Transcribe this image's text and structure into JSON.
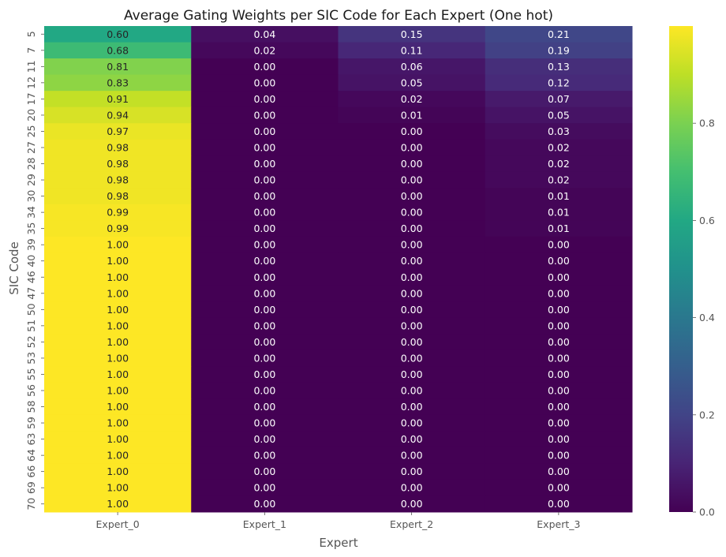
{
  "chart_data": {
    "type": "heatmap",
    "title": "Average Gating Weights per SIC Code for Each Expert (One hot)",
    "xlabel": "Expert",
    "ylabel": "SIC Code",
    "colormap": "viridis",
    "vmin": 0.0,
    "vmax": 1.0,
    "colorbar_ticks": [
      "0.0",
      "0.2",
      "0.4",
      "0.6",
      "0.8"
    ],
    "columns": [
      "Expert_0",
      "Expert_1",
      "Expert_2",
      "Expert_3"
    ],
    "rows": [
      "5",
      "7",
      "11",
      "12",
      "17",
      "20",
      "25",
      "27",
      "28",
      "29",
      "30",
      "34",
      "35",
      "39",
      "40",
      "46",
      "47",
      "50",
      "51",
      "52",
      "53",
      "55",
      "56",
      "58",
      "59",
      "63",
      "64",
      "66",
      "69",
      "70"
    ],
    "values": [
      [
        0.6,
        0.04,
        0.15,
        0.21
      ],
      [
        0.68,
        0.02,
        0.11,
        0.19
      ],
      [
        0.81,
        0.0,
        0.06,
        0.13
      ],
      [
        0.83,
        0.0,
        0.05,
        0.12
      ],
      [
        0.91,
        0.0,
        0.02,
        0.07
      ],
      [
        0.94,
        0.0,
        0.01,
        0.05
      ],
      [
        0.97,
        0.0,
        0.0,
        0.03
      ],
      [
        0.98,
        0.0,
        0.0,
        0.02
      ],
      [
        0.98,
        0.0,
        0.0,
        0.02
      ],
      [
        0.98,
        0.0,
        0.0,
        0.02
      ],
      [
        0.98,
        0.0,
        0.0,
        0.01
      ],
      [
        0.99,
        0.0,
        0.0,
        0.01
      ],
      [
        0.99,
        0.0,
        0.0,
        0.01
      ],
      [
        1.0,
        0.0,
        0.0,
        0.0
      ],
      [
        1.0,
        0.0,
        0.0,
        0.0
      ],
      [
        1.0,
        0.0,
        0.0,
        0.0
      ],
      [
        1.0,
        0.0,
        0.0,
        0.0
      ],
      [
        1.0,
        0.0,
        0.0,
        0.0
      ],
      [
        1.0,
        0.0,
        0.0,
        0.0
      ],
      [
        1.0,
        0.0,
        0.0,
        0.0
      ],
      [
        1.0,
        0.0,
        0.0,
        0.0
      ],
      [
        1.0,
        0.0,
        0.0,
        0.0
      ],
      [
        1.0,
        0.0,
        0.0,
        0.0
      ],
      [
        1.0,
        0.0,
        0.0,
        0.0
      ],
      [
        1.0,
        0.0,
        0.0,
        0.0
      ],
      [
        1.0,
        0.0,
        0.0,
        0.0
      ],
      [
        1.0,
        0.0,
        0.0,
        0.0
      ],
      [
        1.0,
        0.0,
        0.0,
        0.0
      ],
      [
        1.0,
        0.0,
        0.0,
        0.0
      ],
      [
        1.0,
        0.0,
        0.0,
        0.0
      ]
    ]
  }
}
